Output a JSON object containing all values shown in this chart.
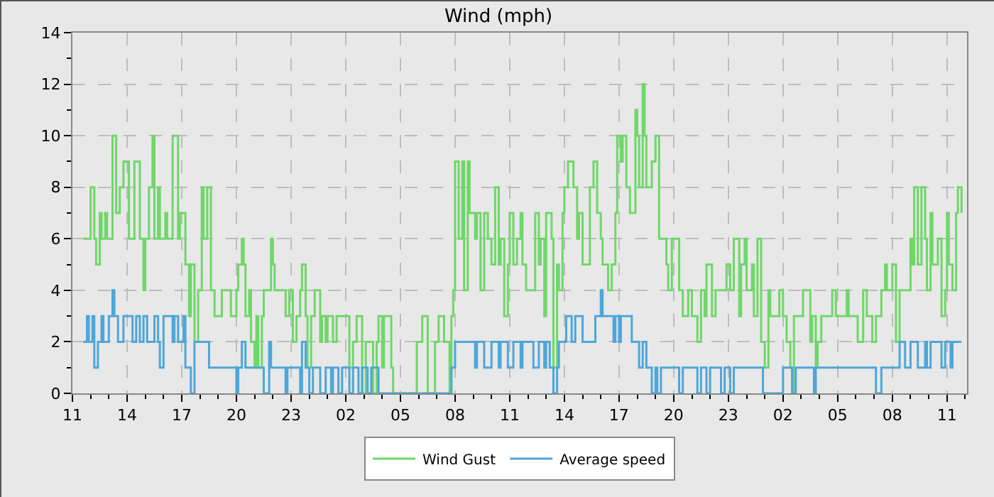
{
  "chart_data": {
    "type": "step",
    "title": "Wind (mph)",
    "x": [
      "--01-01T11:36",
      "--01-01T12:00",
      "--01-01T12:12",
      "--01-01T12:18",
      "--01-01T12:30",
      "--01-01T12:36",
      "--01-01T12:48",
      "--01-01T12:54",
      "--01-01T13:12",
      "--01-01T13:24",
      "--01-01T13:36",
      "--01-01T13:48",
      "--01-01T14:06",
      "--01-01T14:24",
      "--01-01T14:36",
      "--01-01T14:42",
      "--01-01T14:54",
      "--01-01T15:00",
      "--01-01T15:12",
      "--01-01T15:24",
      "--01-01T15:30",
      "--01-01T15:42",
      "--01-01T15:48",
      "--01-01T16:06",
      "--01-01T16:12",
      "--01-01T16:30",
      "--01-01T16:48",
      "--01-01T16:54",
      "--01-01T17:12",
      "--01-01T17:24",
      "--01-01T17:30",
      "--01-01T17:42",
      "--01-01T17:54",
      "--01-01T18:06",
      "--01-01T18:12",
      "--01-01T18:24",
      "--01-01T18:36",
      "--01-01T18:48",
      "--01-01T19:12",
      "--01-01T19:36",
      "--01-01T19:42",
      "--01-01T20:00",
      "--01-01T20:06",
      "--01-01T20:18",
      "--01-01T20:24",
      "--01-01T20:30",
      "--01-01T20:42",
      "--01-01T20:48",
      "--01-01T21:00",
      "--01-01T21:06",
      "--01-01T21:12",
      "--01-01T21:24",
      "--01-01T21:30",
      "--01-01T21:48",
      "--01-01T21:54",
      "--01-01T22:00",
      "--01-01T22:06",
      "--01-01T22:18",
      "--01-01T22:42",
      "--01-01T22:54",
      "--01-01T23:06",
      "--01-01T23:18",
      "--01-01T23:30",
      "--01-01T23:36",
      "--01-01T23:48",
      "--01-01T23:54",
      "--01-02T00:06",
      "--01-02T00:18",
      "--01-02T00:36",
      "--01-02T00:42",
      "--01-02T00:54",
      "--01-02T01:00",
      "--01-02T01:18",
      "--01-02T01:30",
      "--01-02T01:48",
      "--01-02T02:00",
      "--01-02T02:12",
      "--01-02T02:24",
      "--01-02T02:36",
      "--01-02T02:54",
      "--01-02T03:06",
      "--01-02T03:30",
      "--01-02T03:42",
      "--01-02T03:48",
      "--01-02T04:00",
      "--01-02T04:06",
      "--01-02T04:30",
      "--01-02T04:36",
      "--01-02T05:36",
      "--01-02T05:54",
      "--01-02T06:12",
      "--01-02T06:18",
      "--01-02T06:30",
      "--01-02T06:54",
      "--01-02T07:06",
      "--01-02T07:24",
      "--01-02T07:42",
      "--01-02T07:48",
      "--01-02T07:54",
      "--01-02T08:00",
      "--01-02T08:12",
      "--01-02T08:24",
      "--01-02T08:30",
      "--01-02T08:42",
      "--01-02T08:48",
      "--01-02T09:06",
      "--01-02T09:12",
      "--01-02T09:24",
      "--01-02T09:36",
      "--01-02T09:48",
      "--01-02T10:00",
      "--01-02T10:12",
      "--01-02T10:24",
      "--01-02T10:30",
      "--01-02T10:42",
      "--01-02T10:54",
      "--01-02T11:00",
      "--01-02T11:12",
      "--01-02T11:24",
      "--01-02T11:36",
      "--01-02T11:42",
      "--01-02T11:54",
      "--01-02T12:12",
      "--01-02T12:24",
      "--01-02T12:36",
      "--01-02T12:42",
      "--01-02T12:54",
      "--01-02T13:00",
      "--01-02T13:18",
      "--01-02T13:24",
      "--01-02T13:36",
      "--01-02T13:42",
      "--01-02T13:54",
      "--01-02T14:00",
      "--01-02T14:12",
      "--01-02T14:24",
      "--01-02T14:30",
      "--01-02T14:42",
      "--01-02T14:48",
      "--01-02T15:00",
      "--01-02T15:12",
      "--01-02T15:24",
      "--01-02T15:36",
      "--01-02T15:48",
      "--01-02T16:00",
      "--01-02T16:06",
      "--01-02T16:24",
      "--01-02T16:36",
      "--01-02T16:48",
      "--01-02T16:54",
      "--01-02T17:06",
      "--01-02T17:12",
      "--01-02T17:24",
      "--01-02T17:36",
      "--01-02T17:42",
      "--01-02T17:54",
      "--01-02T18:00",
      "--01-02T18:06",
      "--01-02T18:18",
      "--01-02T18:24",
      "--01-02T18:30",
      "--01-02T18:36",
      "--01-02T18:48",
      "--01-02T19:00",
      "--01-02T19:12",
      "--01-02T19:24",
      "--01-02T19:36",
      "--01-02T19:42",
      "--01-02T19:54",
      "--01-02T20:18",
      "--01-02T20:30",
      "--01-02T20:48",
      "--01-02T21:00",
      "--01-02T21:18",
      "--01-02T21:30",
      "--01-02T21:42",
      "--01-02T21:48",
      "--01-02T22:06",
      "--01-02T22:18",
      "--01-02T22:42",
      "--01-02T22:54",
      "--01-02T23:06",
      "--01-02T23:18",
      "--01-02T23:36",
      "--01-02T23:42",
      "--01-02T23:54",
      "--01-03T00:00",
      "--01-03T00:18",
      "--01-03T00:24",
      "--01-03T00:36",
      "--01-03T00:48",
      "--01-03T01:00",
      "--01-03T01:12",
      "--01-03T01:18",
      "--01-03T01:48",
      "--01-03T02:00",
      "--01-03T02:12",
      "--01-03T02:24",
      "--01-03T02:30",
      "--01-03T02:36",
      "--01-03T02:54",
      "--01-03T03:06",
      "--01-03T03:18",
      "--01-03T03:30",
      "--01-03T03:36",
      "--01-03T03:48",
      "--01-03T03:54",
      "--01-03T04:06",
      "--01-03T04:30",
      "--01-03T04:42",
      "--01-03T04:54",
      "--01-03T05:12",
      "--01-03T05:30",
      "--01-03T05:36",
      "--01-03T05:54",
      "--01-03T06:06",
      "--01-03T06:24",
      "--01-03T06:36",
      "--01-03T06:54",
      "--01-03T07:06",
      "--01-03T07:18",
      "--01-03T07:24",
      "--01-03T07:36",
      "--01-03T07:42",
      "--01-03T08:00",
      "--01-03T08:12",
      "--01-03T08:24",
      "--01-03T08:42",
      "--01-03T09:00",
      "--01-03T09:06",
      "--01-03T09:12",
      "--01-03T09:24",
      "--01-03T09:36",
      "--01-03T09:48",
      "--01-03T09:54",
      "--01-03T10:06",
      "--01-03T10:12",
      "--01-03T10:30",
      "--01-03T10:42",
      "--01-03T10:54",
      "--01-03T11:00",
      "--01-03T11:06",
      "--01-03T11:18",
      "--01-03T11:30",
      "--01-03T11:36",
      "--01-03T11:48"
    ],
    "series": [
      {
        "name": "Wind Gust",
        "color": "#6fd769",
        "values": [
          6,
          8,
          6,
          5,
          7,
          6,
          7,
          6,
          10,
          7,
          8,
          9,
          6,
          9,
          9,
          6,
          4,
          6,
          8,
          10,
          6,
          8,
          6,
          7,
          6,
          10,
          6,
          7,
          5,
          3,
          5,
          2,
          4,
          8,
          6,
          8,
          4,
          3,
          4,
          4,
          3,
          4,
          5,
          6,
          5,
          3,
          4,
          2,
          1,
          3,
          1,
          3,
          4,
          4,
          6,
          5,
          4,
          4,
          3,
          4,
          2,
          3,
          4,
          5,
          3,
          1,
          3,
          4,
          2,
          3,
          2,
          3,
          2,
          3,
          3,
          3,
          1,
          2,
          3,
          0,
          2,
          0,
          2,
          3,
          1,
          3,
          1,
          0,
          0,
          2,
          3,
          3,
          0,
          2,
          3,
          2,
          0,
          3,
          4,
          9,
          6,
          9,
          4,
          9,
          7,
          6,
          7,
          4,
          7,
          6,
          5,
          8,
          5,
          6,
          3,
          5,
          7,
          5,
          6,
          7,
          5,
          4,
          4,
          7,
          5,
          6,
          3,
          7,
          6,
          1,
          5,
          4,
          7,
          8,
          9,
          9,
          8,
          6,
          7,
          5,
          5,
          8,
          9,
          7,
          6,
          5,
          4,
          5,
          7,
          10,
          9,
          10,
          8,
          7,
          7,
          11,
          10,
          8,
          12,
          10,
          8,
          8,
          9,
          10,
          6,
          6,
          5,
          4,
          6,
          4,
          3,
          4,
          3,
          2,
          4,
          3,
          5,
          3,
          4,
          4,
          5,
          4,
          6,
          3,
          5,
          6,
          4,
          5,
          3,
          6,
          2,
          1,
          4,
          3,
          4,
          3,
          2,
          1,
          0,
          3,
          3,
          4,
          4,
          2,
          3,
          1,
          2,
          3,
          3,
          4,
          3,
          3,
          4,
          3,
          3,
          2,
          4,
          3,
          2,
          3,
          3,
          4,
          5,
          4,
          5,
          2,
          4,
          4,
          6,
          5,
          8,
          5,
          8,
          6,
          4,
          7,
          5,
          6,
          3,
          4,
          7,
          5,
          4,
          7,
          8,
          7
        ]
      },
      {
        "name": "Average speed",
        "color": "#4ea6da",
        "x": [
          "--01-01T11:36",
          "--01-01T11:48",
          "--01-01T11:54",
          "--01-01T12:06",
          "--01-01T12:12",
          "--01-01T12:24",
          "--01-01T12:36",
          "--01-01T12:42",
          "--01-01T13:00",
          "--01-01T13:12",
          "--01-01T13:18",
          "--01-01T13:30",
          "--01-01T13:48",
          "--01-01T14:06",
          "--01-01T14:18",
          "--01-01T14:30",
          "--01-01T14:42",
          "--01-01T14:54",
          "--01-01T15:06",
          "--01-01T15:30",
          "--01-01T15:42",
          "--01-01T15:48",
          "--01-01T16:00",
          "--01-01T16:18",
          "--01-01T16:30",
          "--01-01T16:36",
          "--01-01T16:48",
          "--01-01T17:06",
          "--01-01T17:12",
          "--01-01T17:24",
          "--01-01T17:30",
          "--01-01T17:42",
          "--01-01T18:00",
          "--01-01T18:30",
          "--01-01T18:48",
          "--01-01T19:12",
          "--01-01T19:36",
          "--01-01T19:48",
          "--01-01T20:00",
          "--01-01T20:06",
          "--01-01T20:18",
          "--01-01T20:30",
          "--01-01T21:06",
          "--01-01T21:30",
          "--01-01T21:48",
          "--01-01T21:54",
          "--01-01T22:18",
          "--01-01T22:42",
          "--01-01T22:48",
          "--01-01T23:12",
          "--01-01T23:30",
          "--01-01T23:36",
          "--01-01T23:48",
          "--01-02T00:00",
          "--01-02T00:12",
          "--01-02T00:36",
          "--01-02T00:54",
          "--01-02T01:12",
          "--01-02T01:18",
          "--01-02T01:36",
          "--01-02T01:48",
          "--01-02T02:12",
          "--01-02T02:24",
          "--01-02T02:42",
          "--01-02T02:54",
          "--01-02T03:12",
          "--01-02T03:24",
          "--01-02T03:48",
          "--01-02T07:42",
          "--01-02T07:48",
          "--01-02T08:00",
          "--01-02T09:06",
          "--01-02T09:12",
          "--01-02T09:36",
          "--01-02T10:00",
          "--01-02T10:24",
          "--01-02T10:30",
          "--01-02T10:54",
          "--01-02T11:12",
          "--01-02T11:36",
          "--01-02T11:42",
          "--01-02T12:18",
          "--01-02T12:36",
          "--01-02T12:54",
          "--01-02T13:00",
          "--01-02T13:12",
          "--01-02T13:24",
          "--01-02T13:36",
          "--01-02T13:42",
          "--01-02T14:06",
          "--01-02T14:24",
          "--01-02T14:36",
          "--01-02T15:00",
          "--01-02T15:42",
          "--01-02T16:00",
          "--01-02T16:06",
          "--01-02T16:42",
          "--01-02T16:48",
          "--01-02T17:00",
          "--01-02T17:06",
          "--01-02T17:42",
          "--01-02T18:06",
          "--01-02T18:18",
          "--01-02T18:30",
          "--01-02T18:48",
          "--01-02T19:00",
          "--01-02T19:06",
          "--01-02T19:18",
          "--01-02T20:18",
          "--01-02T20:30",
          "--01-02T21:18",
          "--01-02T21:30",
          "--01-02T21:48",
          "--01-02T22:00",
          "--01-02T22:36",
          "--01-02T22:48",
          "--01-02T23:06",
          "--01-02T23:18",
          "--01-03T00:54",
          "--01-03T02:00",
          "--01-03T02:30",
          "--01-03T02:42",
          "--01-03T03:42",
          "--01-03T03:48",
          "--01-03T07:06",
          "--01-03T07:24",
          "--01-03T08:24",
          "--01-03T08:42",
          "--01-03T09:00",
          "--01-03T09:24",
          "--01-03T09:48",
          "--01-03T09:54",
          "--01-03T10:06",
          "--01-03T10:42",
          "--01-03T10:54",
          "--01-03T11:12",
          "--01-03T11:18",
          "--01-03T11:48"
        ],
        "values": [
          2,
          3,
          2,
          3,
          1,
          2,
          3,
          2,
          3,
          4,
          3,
          2,
          3,
          3,
          2,
          3,
          2,
          3,
          2,
          3,
          2,
          1,
          3,
          3,
          2,
          3,
          2,
          3,
          1,
          1,
          0,
          2,
          2,
          1,
          1,
          1,
          1,
          1,
          0,
          1,
          2,
          1,
          1,
          0,
          2,
          1,
          1,
          0,
          1,
          1,
          0,
          2,
          1,
          0,
          1,
          0,
          1,
          0,
          1,
          0,
          1,
          0,
          1,
          0,
          1,
          0,
          1,
          0,
          0,
          1,
          2,
          1,
          2,
          1,
          2,
          1,
          2,
          1,
          2,
          1,
          2,
          1,
          2,
          1,
          2,
          1,
          0,
          1,
          2,
          3,
          2,
          3,
          2,
          3,
          4,
          3,
          2,
          3,
          2,
          3,
          2,
          1,
          2,
          1,
          0,
          1,
          0,
          1,
          0,
          1,
          0,
          1,
          0,
          1,
          0,
          1,
          0,
          1,
          0,
          1,
          0,
          1,
          0,
          1,
          0,
          1,
          2,
          1,
          2,
          1,
          2,
          1,
          2,
          1,
          2,
          1,
          2,
          2
        ]
      }
    ],
    "xlim": [
      "--01-01T11:00",
      "--01-03T12:06"
    ],
    "xticks": [
      {
        "value": "--01-01T11:00",
        "label": "11"
      },
      {
        "value": "--01-01T14:00",
        "label": "14"
      },
      {
        "value": "--01-01T17:00",
        "label": "17"
      },
      {
        "value": "--01-01T20:00",
        "label": "20"
      },
      {
        "value": "--01-01T23:00",
        "label": "23"
      },
      {
        "value": "--01-02T02:00",
        "label": "02"
      },
      {
        "value": "--01-02T05:00",
        "label": "05"
      },
      {
        "value": "--01-02T08:00",
        "label": "08"
      },
      {
        "value": "--01-02T11:00",
        "label": "11"
      },
      {
        "value": "--01-02T14:00",
        "label": "14"
      },
      {
        "value": "--01-02T17:00",
        "label": "17"
      },
      {
        "value": "--01-02T20:00",
        "label": "20"
      },
      {
        "value": "--01-02T23:00",
        "label": "23"
      },
      {
        "value": "--01-03T02:00",
        "label": "02"
      },
      {
        "value": "--01-03T05:00",
        "label": "05"
      },
      {
        "value": "--01-03T08:00",
        "label": "08"
      },
      {
        "value": "--01-03T11:00",
        "label": "11"
      }
    ],
    "ylim": [
      0,
      14
    ],
    "yticks": [
      0,
      2,
      4,
      6,
      8,
      10,
      12,
      14
    ],
    "grid": true,
    "legend": "bottom",
    "marker": "none",
    "line_style": "solid"
  }
}
